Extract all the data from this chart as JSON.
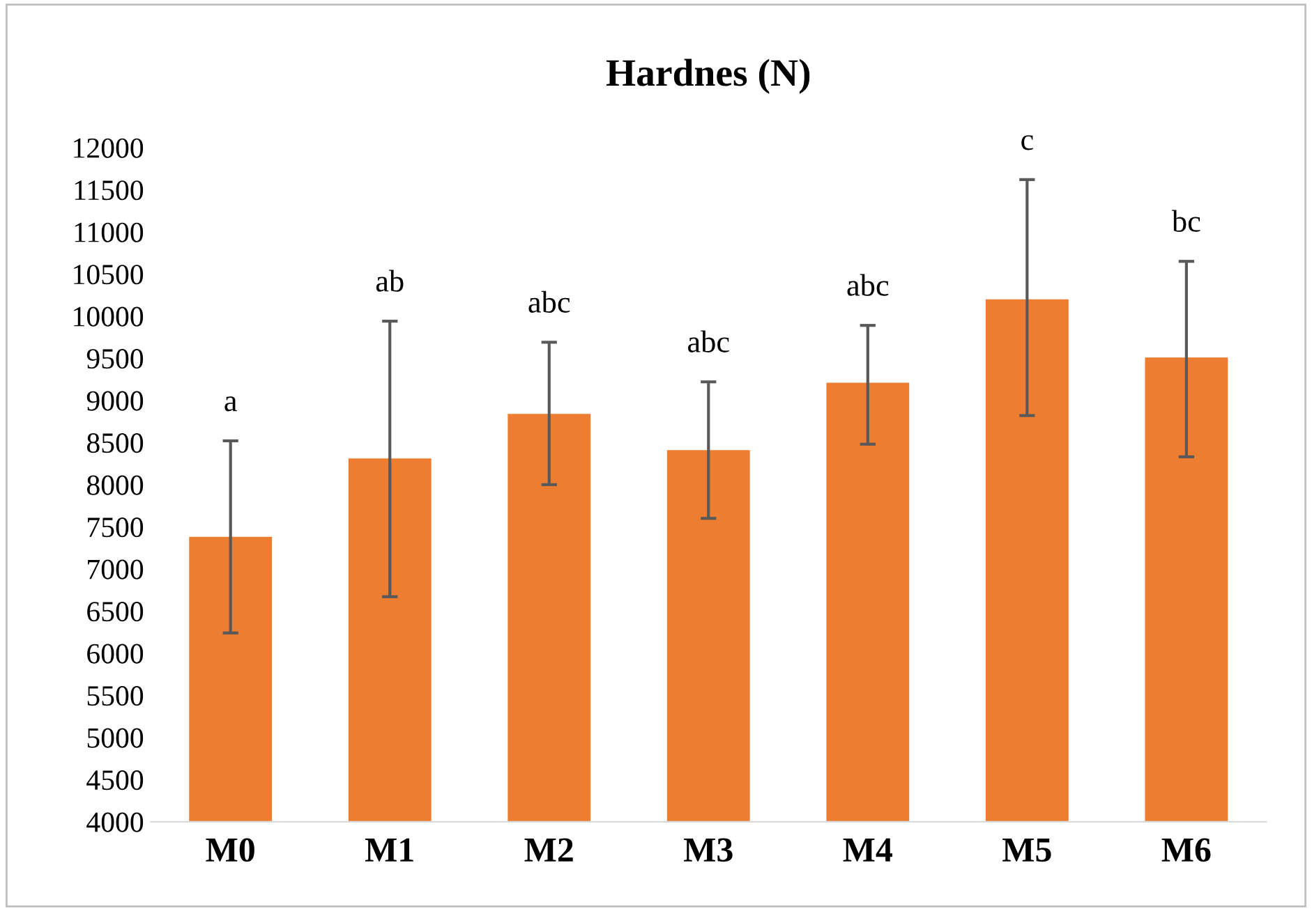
{
  "chart_data": {
    "type": "bar",
    "title": "Hardnes (N)",
    "categories": [
      "M0",
      "M1",
      "M2",
      "M3",
      "M4",
      "M5",
      "M6"
    ],
    "values": [
      7380,
      8310,
      8840,
      8410,
      9210,
      10200,
      9510
    ],
    "errors": [
      [
        6240,
        8520
      ],
      [
        6670,
        9940
      ],
      [
        8000,
        9690
      ],
      [
        7600,
        9220
      ],
      [
        8480,
        9890
      ],
      [
        8820,
        11620
      ],
      [
        8330,
        10650
      ]
    ],
    "color": "#ed7d31",
    "ylim": [
      4000,
      12000
    ],
    "yticks": [
      4000,
      4500,
      5000,
      5500,
      6000,
      6500,
      7000,
      7500,
      8000,
      8500,
      9000,
      9500,
      10000,
      10500,
      11000,
      11500,
      12000
    ],
    "grid": false,
    "legend": false,
    "annotations": [
      {
        "text": "a",
        "x": "M0",
        "y": 8520
      },
      {
        "text": "ab",
        "x": "M1",
        "y": 9940
      },
      {
        "text": "abc",
        "x": "M2",
        "y": 9690
      },
      {
        "text": "abc",
        "x": "M3",
        "y": 9220
      },
      {
        "text": "abc",
        "x": "M4",
        "y": 9890
      },
      {
        "text": "c",
        "x": "M5",
        "y": 11620
      },
      {
        "text": "bc",
        "x": "M6",
        "y": 10650
      }
    ]
  }
}
